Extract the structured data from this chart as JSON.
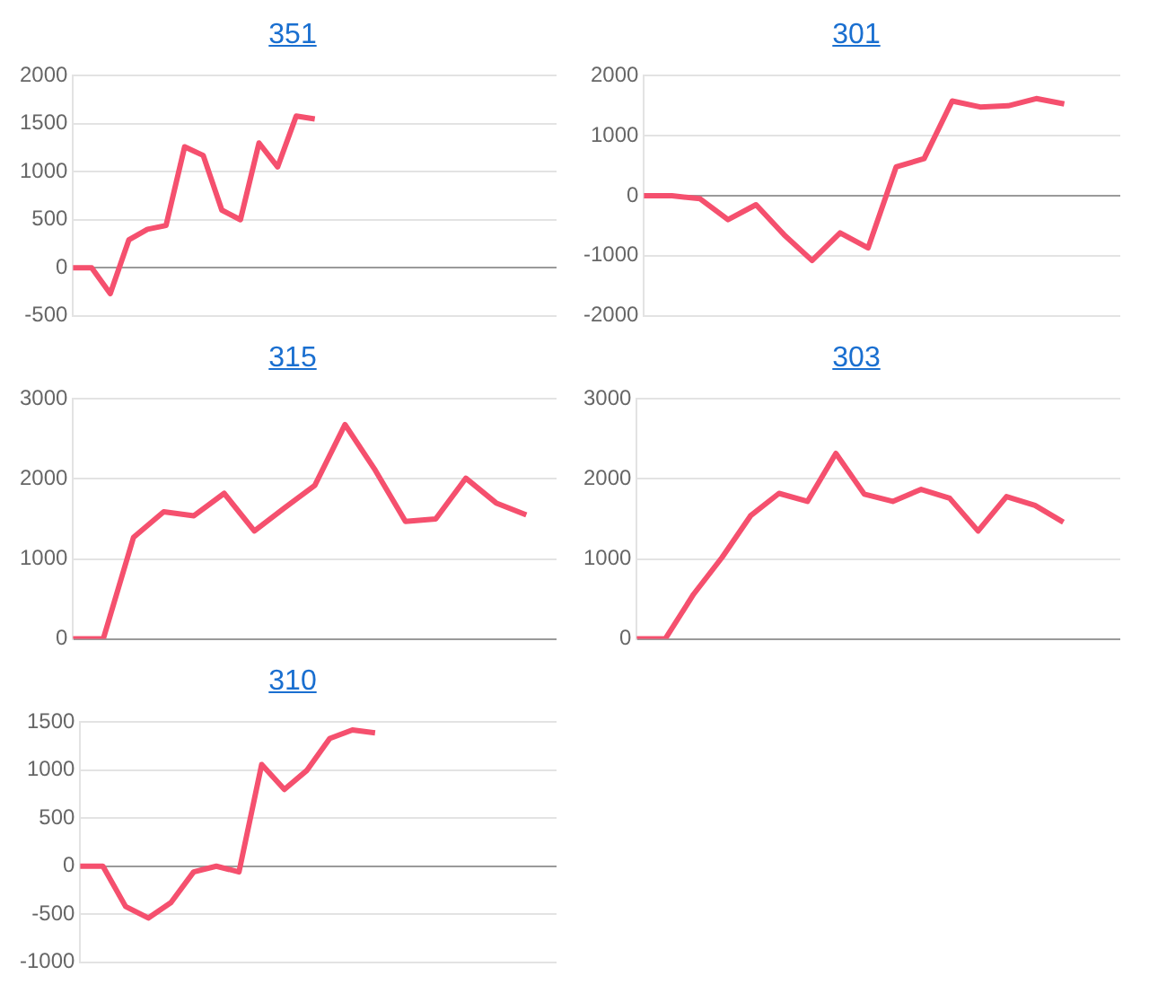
{
  "chart_data": [
    {
      "type": "line",
      "title": "351",
      "categories": [
        null,
        null,
        null,
        null,
        null,
        null,
        null,
        null,
        null,
        null,
        null,
        null,
        null,
        null,
        null,
        null,
        null,
        null,
        null,
        null,
        null,
        null,
        null,
        null,
        null,
        null,
        null
      ],
      "series": [
        {
          "color": "#f5506e",
          "values": [
            0,
            0,
            -270,
            290,
            400,
            440,
            1260,
            1170,
            600,
            500,
            1300,
            1050,
            1580,
            1550,
            null,
            null,
            null,
            null,
            null,
            null,
            null,
            null,
            null,
            null,
            null,
            null,
            null
          ]
        }
      ],
      "ylim": [
        -500,
        2000
      ],
      "yticks": [
        -500,
        0,
        500,
        1000,
        1500,
        2000
      ],
      "grid": "y",
      "tick_labels": "y"
    },
    {
      "type": "line",
      "title": "301",
      "categories": [
        null,
        null,
        null,
        null,
        null,
        null,
        null,
        null,
        null,
        null,
        null,
        null,
        null,
        null,
        null,
        null,
        null,
        null
      ],
      "series": [
        {
          "color": "#f5506e",
          "values": [
            0,
            0,
            -50,
            -400,
            -150,
            -650,
            -1080,
            -620,
            -870,
            480,
            620,
            1580,
            1480,
            1500,
            1620,
            1530,
            null,
            null
          ]
        }
      ],
      "ylim": [
        -2000,
        2000
      ],
      "yticks": [
        -2000,
        -1000,
        0,
        1000,
        2000
      ],
      "grid": "y",
      "tick_labels": "y"
    },
    {
      "type": "line",
      "title": "315",
      "categories": [
        null,
        null,
        null,
        null,
        null,
        null,
        null,
        null,
        null,
        null,
        null,
        null,
        null,
        null,
        null,
        null,
        null
      ],
      "series": [
        {
          "color": "#f5506e",
          "values": [
            0,
            0,
            1270,
            1590,
            1540,
            1820,
            1350,
            1640,
            1920,
            2680,
            2110,
            1470,
            1500,
            2010,
            1700,
            1550,
            null
          ]
        }
      ],
      "ylim": [
        0,
        3000
      ],
      "yticks": [
        0,
        1000,
        2000,
        3000
      ],
      "grid": "y",
      "tick_labels": "y"
    },
    {
      "type": "line",
      "title": "303",
      "categories": [
        null,
        null,
        null,
        null,
        null,
        null,
        null,
        null,
        null,
        null,
        null,
        null,
        null,
        null,
        null,
        null,
        null,
        null
      ],
      "series": [
        {
          "color": "#f5506e",
          "values": [
            0,
            0,
            560,
            1020,
            1540,
            1820,
            1720,
            2320,
            1810,
            1720,
            1870,
            1760,
            1350,
            1780,
            1670,
            1460,
            null,
            null
          ]
        }
      ],
      "ylim": [
        0,
        3000
      ],
      "yticks": [
        0,
        1000,
        2000,
        3000
      ],
      "grid": "y",
      "tick_labels": "y"
    },
    {
      "type": "line",
      "title": "310",
      "categories": [
        null,
        null,
        null,
        null,
        null,
        null,
        null,
        null,
        null,
        null,
        null,
        null,
        null,
        null,
        null,
        null,
        null,
        null,
        null,
        null,
        null,
        null
      ],
      "series": [
        {
          "color": "#f5506e",
          "values": [
            0,
            0,
            -420,
            -540,
            -380,
            -60,
            0,
            -60,
            1060,
            800,
            1000,
            1330,
            1420,
            1390,
            null,
            null,
            null,
            null,
            null,
            null,
            null,
            null
          ]
        }
      ],
      "ylim": [
        -1000,
        1500
      ],
      "yticks": [
        -1000,
        -500,
        0,
        500,
        1000,
        1500
      ],
      "grid": "y",
      "tick_labels": "y"
    }
  ]
}
